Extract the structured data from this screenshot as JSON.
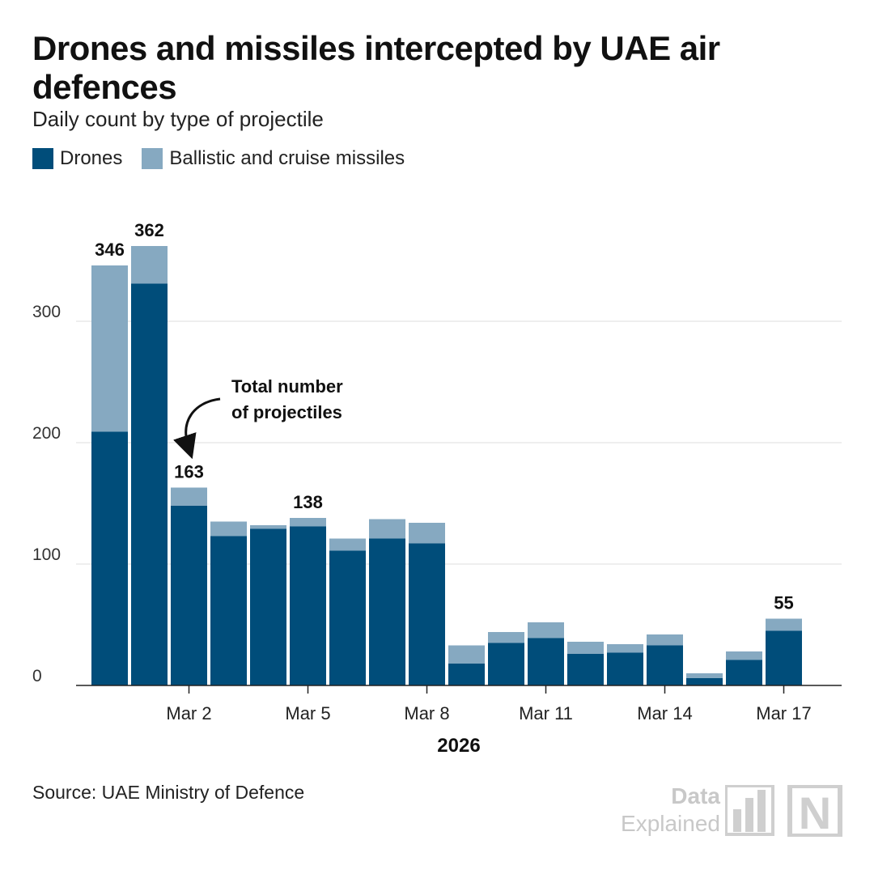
{
  "title": "Drones and missiles intercepted by UAE air defences",
  "subtitle": "Daily count by type of projectile",
  "legend": [
    {
      "label": "Drones",
      "color": "#004d7a"
    },
    {
      "label": "Ballistic and cruise missiles",
      "color": "#86a9c1"
    }
  ],
  "annotation": {
    "line1": "Total number",
    "line2": "of projectiles"
  },
  "source": "Source: UAE Ministry of Defence",
  "brand": {
    "line1": "Data",
    "line2": "Explained",
    "mark": "N"
  },
  "chart_data": {
    "type": "bar",
    "stacked": true,
    "title": "Drones and missiles intercepted by UAE air defences",
    "subtitle": "Daily count by type of projectile",
    "xlabel": "2026",
    "ylabel": "",
    "ylim": [
      0,
      370
    ],
    "yticks": [
      0,
      100,
      200,
      300
    ],
    "grid": true,
    "categories": [
      "Feb 28",
      "Mar 1",
      "Mar 2",
      "Mar 3",
      "Mar 4",
      "Mar 5",
      "Mar 6",
      "Mar 7",
      "Mar 8",
      "Mar 9",
      "Mar 10",
      "Mar 11",
      "Mar 12",
      "Mar 13",
      "Mar 14",
      "Mar 15",
      "Mar 16",
      "Mar 17"
    ],
    "tick_labels": [
      {
        "category": "Mar 2",
        "label": "Mar 2"
      },
      {
        "category": "Mar 5",
        "label": "Mar 5"
      },
      {
        "category": "Mar 8",
        "label": "Mar 8"
      },
      {
        "category": "Mar 11",
        "label": "Mar 11"
      },
      {
        "category": "Mar 14",
        "label": "Mar 14"
      },
      {
        "category": "Mar 17",
        "label": "Mar 17"
      }
    ],
    "series": [
      {
        "name": "Drones",
        "color": "#004d7a",
        "values": [
          209,
          331,
          148,
          123,
          129,
          131,
          111,
          121,
          117,
          18,
          35,
          39,
          26,
          27,
          33,
          6,
          21,
          45
        ]
      },
      {
        "name": "Ballistic and cruise missiles",
        "color": "#86a9c1",
        "values": [
          137,
          31,
          15,
          12,
          3,
          7,
          10,
          16,
          17,
          15,
          9,
          13,
          10,
          7,
          9,
          4,
          7,
          10
        ]
      }
    ],
    "data_labels": [
      {
        "category": "Feb 28",
        "label": "346"
      },
      {
        "category": "Mar 1",
        "label": "362"
      },
      {
        "category": "Mar 2",
        "label": "163"
      },
      {
        "category": "Mar 5",
        "label": "138"
      },
      {
        "category": "Mar 17",
        "label": "55"
      }
    ]
  }
}
